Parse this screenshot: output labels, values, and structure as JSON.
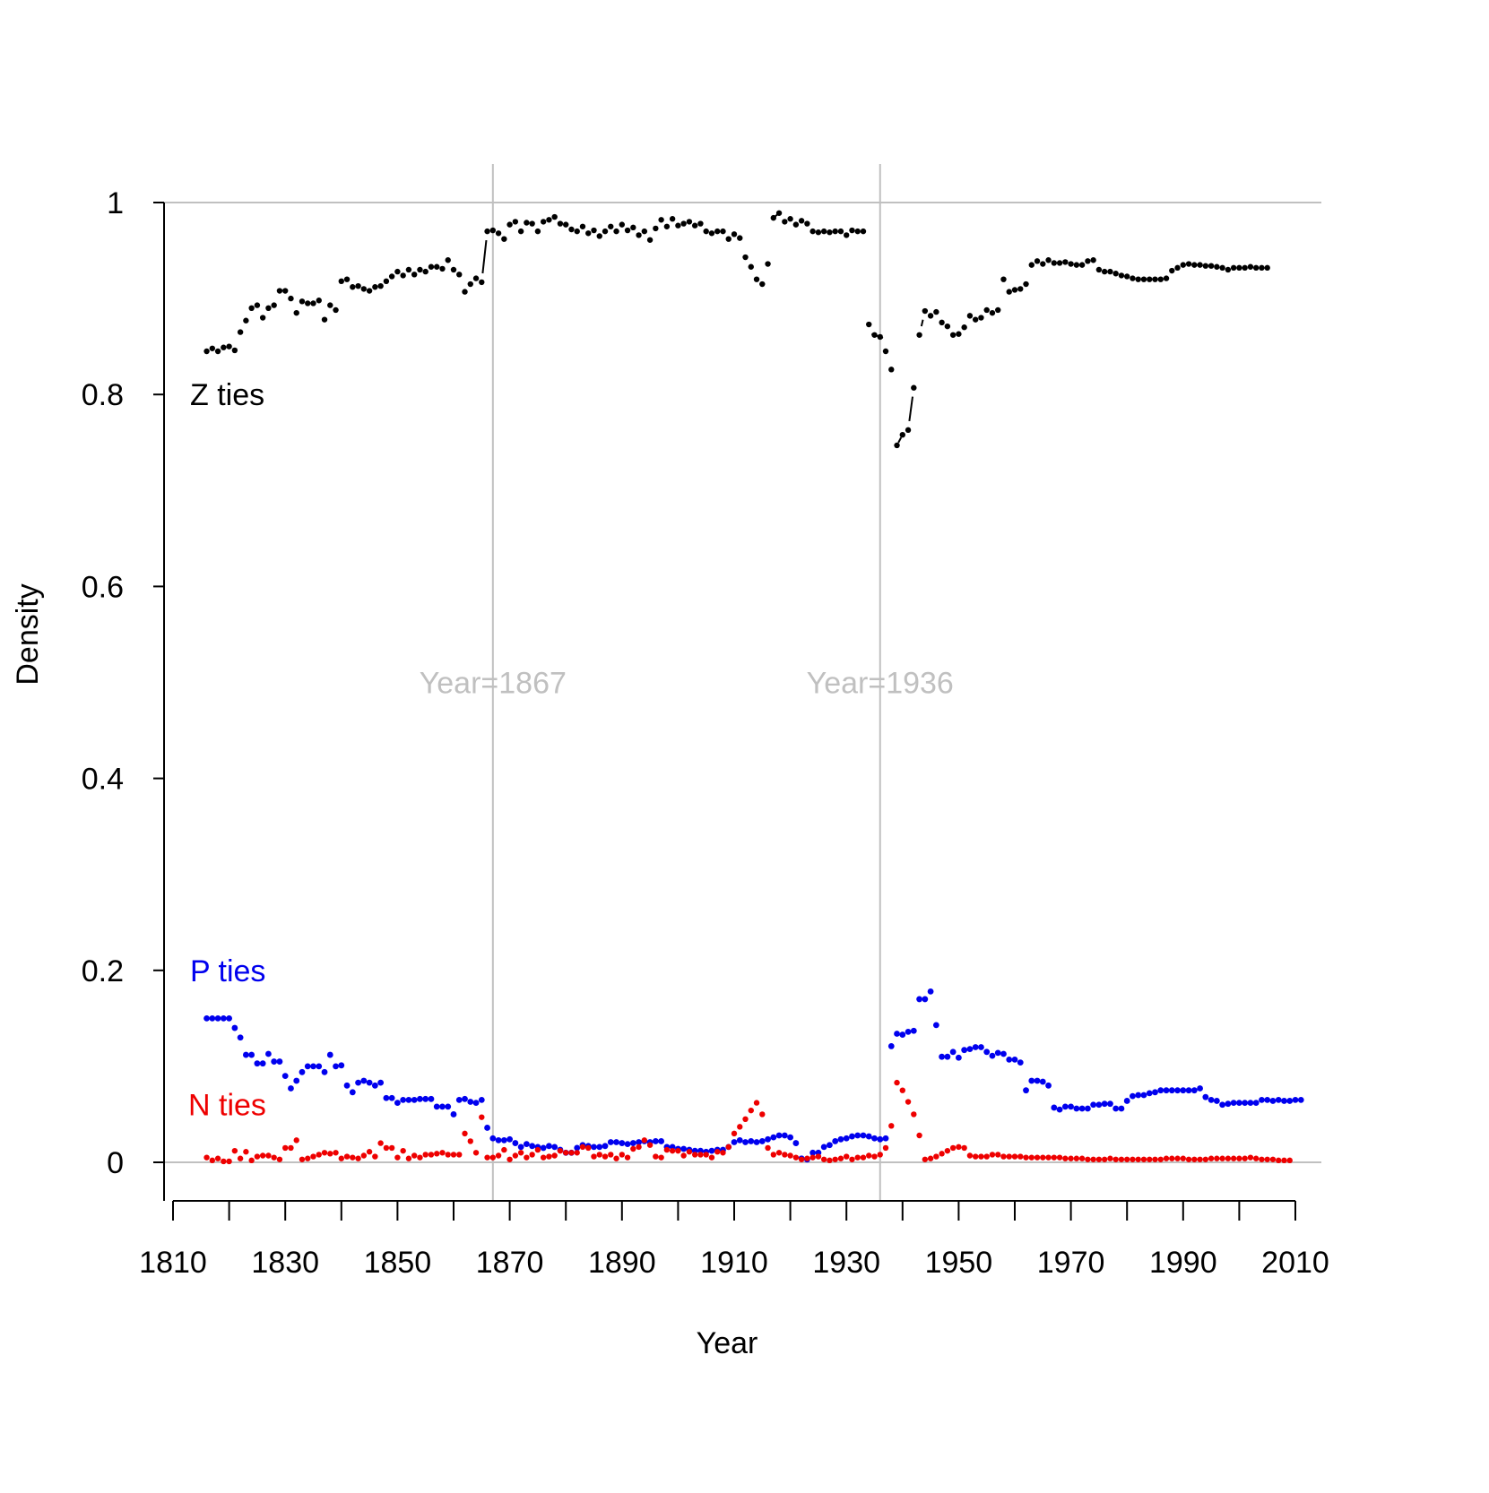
{
  "chart_data": {
    "type": "scatter",
    "title": "",
    "xlabel": "Year",
    "ylabel": "Density",
    "xlim": [
      1810,
      2010
    ],
    "ylim": [
      0,
      1
    ],
    "x_ticks": [
      "1810",
      "1830",
      "1850",
      "1870",
      "1890",
      "1910",
      "1930",
      "1950",
      "1970",
      "1990",
      "2010"
    ],
    "y_ticks": [
      "0",
      "0.2",
      "0.4",
      "0.6",
      "0.8",
      "1"
    ],
    "grid": false,
    "reference_lines": {
      "horizontal": [
        0,
        1
      ],
      "vertical": [
        {
          "x": 1867,
          "label": "Year=1867"
        },
        {
          "x": 1936,
          "label": "Year=1936"
        }
      ],
      "color": "#c0c0c0"
    },
    "series_labels": {
      "z": "Z ties",
      "p": "P ties",
      "n": "N ties"
    },
    "colors": {
      "z": "#000000",
      "p": "#0000ee",
      "n": "#ee0000",
      "reference": "#c0c0c0",
      "axis": "#000000"
    },
    "x_start": 1816,
    "z_values": [
      0.845,
      0.848,
      0.845,
      0.849,
      0.85,
      0.846,
      0.865,
      0.877,
      0.89,
      0.893,
      0.88,
      0.89,
      0.893,
      0.908,
      0.908,
      0.9,
      0.885,
      0.897,
      0.895,
      0.895,
      0.898,
      0.878,
      0.893,
      0.888,
      0.918,
      0.92,
      0.912,
      0.913,
      0.91,
      0.908,
      0.912,
      0.913,
      0.918,
      0.923,
      0.928,
      0.924,
      0.93,
      0.925,
      0.93,
      0.928,
      0.933,
      0.933,
      0.931,
      0.94,
      0.93,
      0.925,
      0.907,
      0.915,
      0.921,
      0.917,
      0.97,
      0.971,
      0.968,
      0.962,
      0.977,
      0.98,
      0.97,
      0.979,
      0.978,
      0.97,
      0.98,
      0.982,
      0.985,
      0.978,
      0.977,
      0.972,
      0.97,
      0.975,
      0.968,
      0.971,
      0.965,
      0.97,
      0.975,
      0.97,
      0.977,
      0.971,
      0.974,
      0.966,
      0.97,
      0.961,
      0.973,
      0.982,
      0.975,
      0.983,
      0.976,
      0.978,
      0.98,
      0.976,
      0.978,
      0.97,
      0.968,
      0.97,
      0.97,
      0.962,
      0.967,
      0.963,
      0.943,
      0.933,
      0.92,
      0.915,
      0.936,
      0.984,
      0.989,
      0.98,
      0.983,
      0.977,
      0.981,
      0.978,
      0.97,
      0.969,
      0.97,
      0.969,
      0.97,
      0.97,
      0.966,
      0.971,
      0.97,
      0.97,
      0.873,
      0.862,
      0.86,
      0.845,
      0.826,
      0.747,
      0.758,
      0.763,
      0.807,
      0.862,
      0.887,
      0.882,
      0.886,
      0.875,
      0.871,
      0.862,
      0.863,
      0.87,
      0.882,
      0.878,
      0.88,
      0.888,
      0.885,
      0.888,
      0.92,
      0.907,
      0.909,
      0.91,
      0.915,
      0.935,
      0.939,
      0.936,
      0.94,
      0.937,
      0.937,
      0.938,
      0.936,
      0.935,
      0.935,
      0.939,
      0.94,
      0.93,
      0.928,
      0.928,
      0.926,
      0.924,
      0.923,
      0.921,
      0.92,
      0.92,
      0.92,
      0.92,
      0.92,
      0.921,
      0.929,
      0.932,
      0.935,
      0.936,
      0.935,
      0.935,
      0.934,
      0.934,
      0.933,
      0.932,
      0.93,
      0.932,
      0.932,
      0.932,
      0.933,
      0.932,
      0.932,
      0.932
    ],
    "p_values": [
      0.15,
      0.15,
      0.15,
      0.15,
      0.15,
      0.14,
      0.13,
      0.112,
      0.112,
      0.103,
      0.103,
      0.113,
      0.105,
      0.105,
      0.09,
      0.077,
      0.085,
      0.094,
      0.1,
      0.1,
      0.1,
      0.094,
      0.112,
      0.1,
      0.101,
      0.08,
      0.073,
      0.083,
      0.085,
      0.083,
      0.08,
      0.083,
      0.067,
      0.067,
      0.062,
      0.065,
      0.065,
      0.065,
      0.066,
      0.066,
      0.066,
      0.058,
      0.058,
      0.058,
      0.05,
      0.065,
      0.066,
      0.063,
      0.062,
      0.065,
      0.036,
      0.025,
      0.023,
      0.023,
      0.024,
      0.02,
      0.016,
      0.019,
      0.017,
      0.016,
      0.015,
      0.017,
      0.016,
      0.013,
      0.01,
      0.01,
      0.015,
      0.018,
      0.017,
      0.016,
      0.016,
      0.017,
      0.021,
      0.021,
      0.02,
      0.019,
      0.02,
      0.021,
      0.022,
      0.021,
      0.022,
      0.022,
      0.016,
      0.016,
      0.014,
      0.014,
      0.013,
      0.012,
      0.012,
      0.011,
      0.012,
      0.013,
      0.013,
      0.016,
      0.021,
      0.023,
      0.021,
      0.022,
      0.021,
      0.022,
      0.024,
      0.026,
      0.028,
      0.028,
      0.026,
      0.02,
      0.004,
      0.003,
      0.01,
      0.01,
      0.016,
      0.018,
      0.022,
      0.024,
      0.025,
      0.027,
      0.028,
      0.028,
      0.027,
      0.025,
      0.024,
      0.025,
      0.121,
      0.134,
      0.133,
      0.136,
      0.137,
      0.17,
      0.17,
      0.178,
      0.143,
      0.11,
      0.11,
      0.115,
      0.109,
      0.117,
      0.118,
      0.12,
      0.12,
      0.115,
      0.111,
      0.114,
      0.113,
      0.107,
      0.107,
      0.104,
      0.075,
      0.085,
      0.085,
      0.084,
      0.08,
      0.057,
      0.055,
      0.058,
      0.058,
      0.056,
      0.056,
      0.056,
      0.06,
      0.06,
      0.061,
      0.061,
      0.056,
      0.056,
      0.064,
      0.069,
      0.07,
      0.07,
      0.072,
      0.073,
      0.075,
      0.075,
      0.075,
      0.075,
      0.075,
      0.075,
      0.075,
      0.077,
      0.068,
      0.065,
      0.064,
      0.06,
      0.061,
      0.062,
      0.062,
      0.062,
      0.062,
      0.062,
      0.065,
      0.065,
      0.064,
      0.065,
      0.064,
      0.064,
      0.065,
      0.065
    ],
    "n_values": [
      0.005,
      0.002,
      0.004,
      0.001,
      0.001,
      0.012,
      0.004,
      0.011,
      0.002,
      0.006,
      0.007,
      0.007,
      0.005,
      0.003,
      0.015,
      0.015,
      0.023,
      0.003,
      0.004,
      0.006,
      0.008,
      0.01,
      0.009,
      0.01,
      0.004,
      0.006,
      0.005,
      0.004,
      0.007,
      0.011,
      0.006,
      0.02,
      0.015,
      0.015,
      0.005,
      0.012,
      0.004,
      0.007,
      0.005,
      0.008,
      0.008,
      0.009,
      0.01,
      0.008,
      0.008,
      0.008,
      0.03,
      0.022,
      0.01,
      0.047,
      0.005,
      0.005,
      0.007,
      0.013,
      0.003,
      0.007,
      0.01,
      0.005,
      0.008,
      0.013,
      0.005,
      0.006,
      0.007,
      0.012,
      0.01,
      0.01,
      0.01,
      0.016,
      0.015,
      0.006,
      0.008,
      0.006,
      0.008,
      0.004,
      0.008,
      0.005,
      0.014,
      0.016,
      0.023,
      0.018,
      0.006,
      0.005,
      0.013,
      0.012,
      0.012,
      0.007,
      0.011,
      0.008,
      0.008,
      0.008,
      0.005,
      0.011,
      0.01,
      0.016,
      0.03,
      0.037,
      0.045,
      0.054,
      0.062,
      0.05,
      0.015,
      0.008,
      0.01,
      0.008,
      0.007,
      0.005,
      0.003,
      0.004,
      0.005,
      0.006,
      0.003,
      0.002,
      0.003,
      0.004,
      0.006,
      0.003,
      0.005,
      0.005,
      0.007,
      0.006,
      0.008,
      0.015,
      0.038,
      0.083,
      0.075,
      0.063,
      0.05,
      0.028,
      0.003,
      0.004,
      0.006,
      0.009,
      0.012,
      0.015,
      0.016,
      0.015,
      0.007,
      0.006,
      0.006,
      0.006,
      0.008,
      0.008,
      0.006,
      0.006,
      0.006,
      0.006,
      0.005,
      0.005,
      0.005,
      0.005,
      0.005,
      0.005,
      0.005,
      0.004,
      0.004,
      0.004,
      0.004,
      0.003,
      0.003,
      0.003,
      0.003,
      0.004,
      0.003,
      0.003,
      0.003,
      0.003,
      0.003,
      0.003,
      0.003,
      0.003,
      0.003,
      0.004,
      0.004,
      0.004,
      0.004,
      0.003,
      0.003,
      0.003,
      0.003,
      0.004,
      0.004,
      0.004,
      0.004,
      0.004,
      0.004,
      0.004,
      0.005,
      0.004,
      0.003,
      0.003,
      0.003,
      0.002,
      0.002,
      0.002
    ]
  }
}
